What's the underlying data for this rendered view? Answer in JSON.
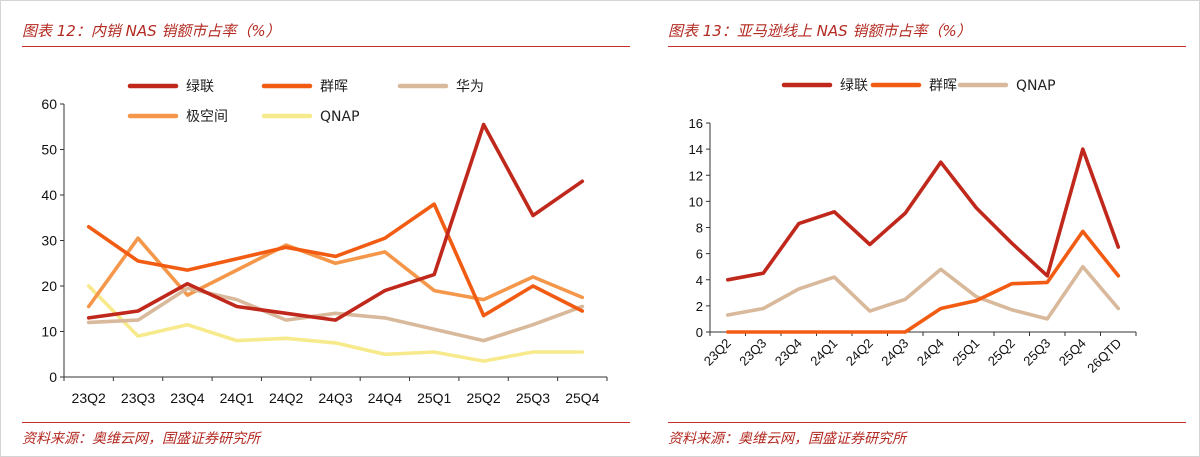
{
  "colors": {
    "lianlian": "#c0281c",
    "qunhui": "#f25c12",
    "huawei": "#d9b99b",
    "jikongjian": "#f5974a",
    "qnap": "#f7ea8c",
    "title": "#b32a22"
  },
  "chart_data": [
    {
      "type": "line",
      "title": "图表 12：内销 NAS 销额市占率（%）",
      "source": "资料来源：奥维云网，国盛证券研究所",
      "categories": [
        "23Q2",
        "23Q3",
        "23Q4",
        "24Q1",
        "24Q2",
        "24Q3",
        "24Q4",
        "25Q1",
        "25Q2",
        "25Q3",
        "25Q4"
      ],
      "ylim": [
        0,
        60
      ],
      "yticks": [
        0,
        10,
        20,
        30,
        40,
        50,
        60
      ],
      "legend_position": "top",
      "series": [
        {
          "name": "绿联",
          "color_key": "lianlian",
          "values": [
            13,
            14.5,
            20.5,
            15.5,
            14,
            12.5,
            19,
            22.5,
            55.5,
            35.5,
            43
          ]
        },
        {
          "name": "群晖",
          "color_key": "qunhui",
          "values": [
            33,
            25.5,
            23.5,
            26,
            28.5,
            26.5,
            30.5,
            38,
            13.5,
            20,
            14.5
          ]
        },
        {
          "name": "华为",
          "color_key": "huawei",
          "values": [
            12,
            12.5,
            19.5,
            17,
            12.5,
            14,
            13,
            10.5,
            8,
            11.5,
            15.5
          ]
        },
        {
          "name": "极空间",
          "color_key": "jikongjian",
          "values": [
            15.5,
            30.5,
            18,
            23.5,
            29,
            25,
            27.5,
            19,
            17,
            22,
            17.5
          ]
        },
        {
          "name": "QNAP",
          "color_key": "qnap",
          "values": [
            20,
            9,
            11.5,
            8,
            8.5,
            7.5,
            5,
            5.5,
            3.5,
            5.5,
            5.5
          ]
        }
      ]
    },
    {
      "type": "line",
      "title": "图表 13：亚马逊线上 NAS 销额市占率（%）",
      "source": "资料来源：奥维云网，国盛证券研究所",
      "categories": [
        "23Q2",
        "23Q3",
        "23Q4",
        "24Q1",
        "24Q2",
        "24Q3",
        "24Q4",
        "25Q1",
        "25Q2",
        "25Q3",
        "25Q4",
        "26QTD"
      ],
      "ylim": [
        0,
        16
      ],
      "yticks": [
        0,
        2,
        4,
        6,
        8,
        10,
        12,
        14,
        16
      ],
      "legend_position": "top",
      "series": [
        {
          "name": "绿联",
          "color_key": "lianlian",
          "values": [
            4,
            4.5,
            8.3,
            9.2,
            6.7,
            9.1,
            13,
            9.5,
            6.8,
            4.3,
            14,
            6.5
          ]
        },
        {
          "name": "群晖",
          "color_key": "qunhui",
          "values": [
            0,
            0,
            0,
            0,
            0,
            0,
            1.8,
            2.4,
            3.7,
            3.8,
            7.7,
            4.3
          ]
        },
        {
          "name": "QNAP",
          "color_key": "huawei",
          "values": [
            1.3,
            1.8,
            3.3,
            4.2,
            1.6,
            2.5,
            4.8,
            2.7,
            1.7,
            1,
            5,
            1.8
          ]
        }
      ]
    }
  ]
}
